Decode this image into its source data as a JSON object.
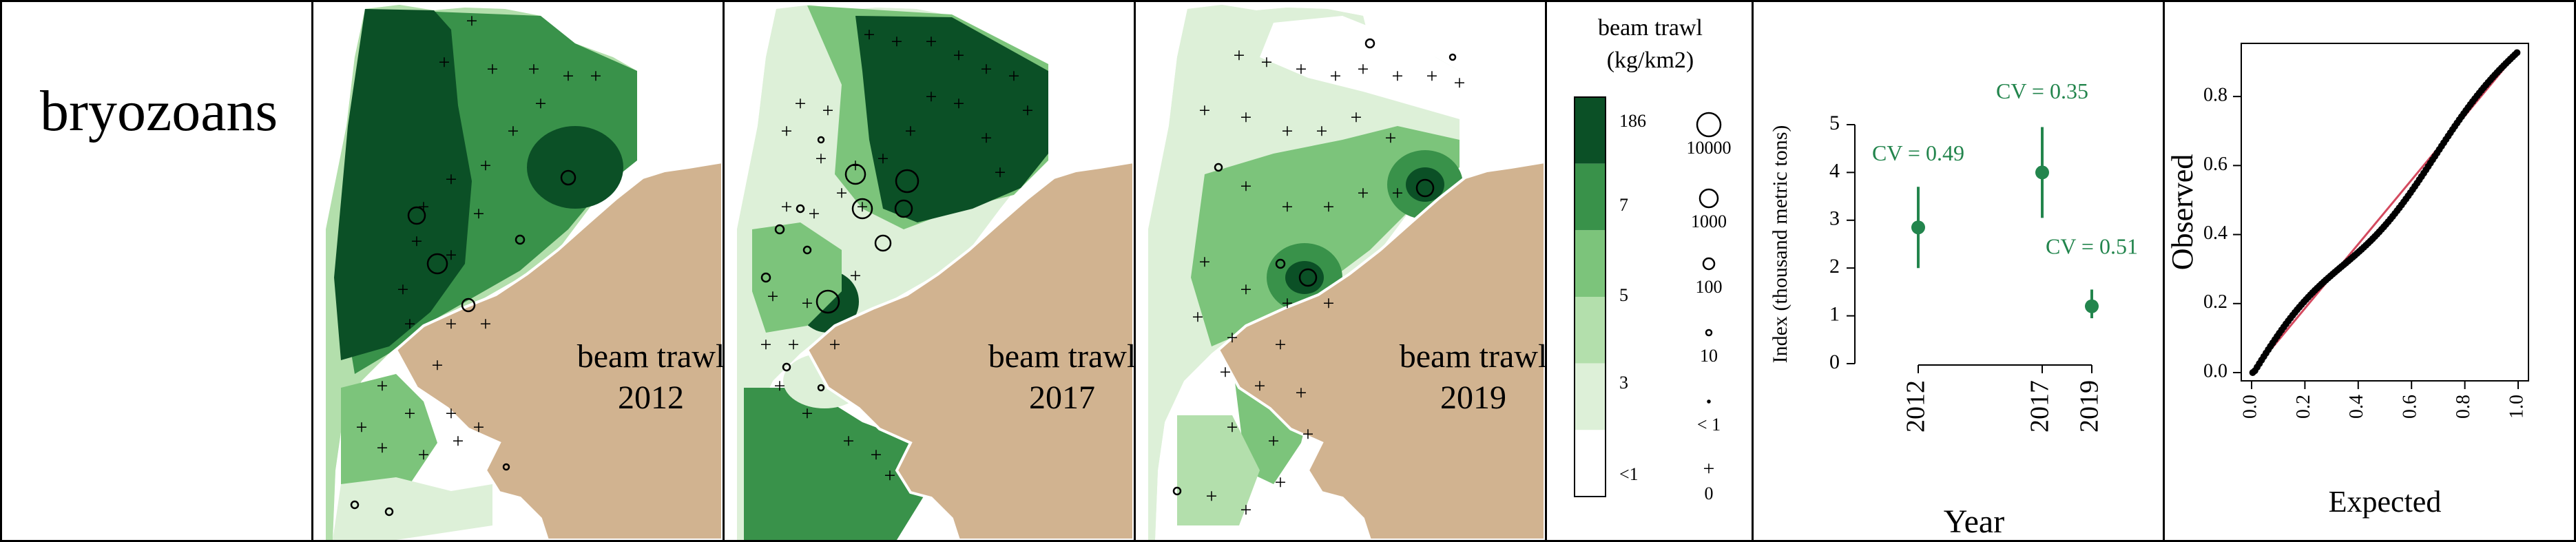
{
  "species_label": "bryozoans",
  "colors": {
    "land": "#d1b390",
    "shades": [
      "#ffffff",
      "#ddf0d8",
      "#b3dfac",
      "#7cc47b",
      "#39924a",
      "#0b5026"
    ],
    "point": "#23854d",
    "line": "#d44a5f"
  },
  "maps": [
    {
      "survey": "beam trawl",
      "year": "2012"
    },
    {
      "survey": "beam trawl",
      "year": "2017"
    },
    {
      "survey": "beam trawl",
      "year": "2019"
    }
  ],
  "legend": {
    "title_line1": "beam trawl",
    "title_line2": "(kg/km2)",
    "color_labels": [
      "186",
      "7",
      "5",
      "3",
      "<1"
    ],
    "size_labels": [
      "10000",
      "1000",
      "100",
      "10",
      "< 1",
      "0"
    ]
  },
  "chart_data": [
    {
      "type": "scatter",
      "title": "",
      "xlabel": "Year",
      "ylabel": "Index (thousand metric tons)",
      "categories": [
        "2012",
        "2017",
        "2019"
      ],
      "x": [
        2012,
        2017,
        2019
      ],
      "y": [
        2.85,
        4.0,
        1.2
      ],
      "lower": [
        2.0,
        3.05,
        0.95
      ],
      "upper": [
        3.7,
        4.95,
        1.55
      ],
      "annotations": [
        "CV = 0.49",
        "CV = 0.35",
        "CV = 0.51"
      ],
      "ylim": [
        0,
        5
      ],
      "yticks": [
        "0",
        "1",
        "2",
        "3",
        "4",
        "5"
      ],
      "grid": false
    },
    {
      "type": "scatter",
      "title": "",
      "xlabel": "Expected",
      "ylabel": "Observed",
      "xlim": [
        0,
        1
      ],
      "ylim": [
        0,
        0.93
      ],
      "xticks": [
        "0.0",
        "0.2",
        "0.4",
        "0.6",
        "0.8",
        "1.0"
      ],
      "yticks": [
        "0.0",
        "0.2",
        "0.4",
        "0.6",
        "0.8"
      ],
      "reference_line": [
        [
          0,
          0
        ],
        [
          1,
          0.93
        ]
      ],
      "grid": false
    }
  ]
}
